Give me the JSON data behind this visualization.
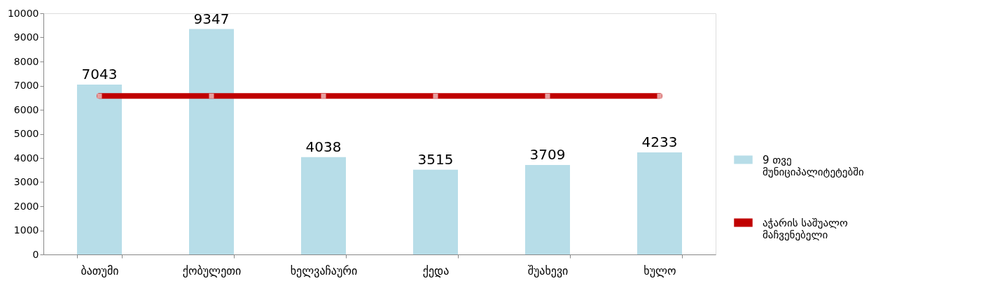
{
  "chart_data": {
    "type": "bar",
    "categories": [
      "ბათუმი",
      "ქობულეთი",
      "ხელვაჩაური",
      "ქედა",
      "შუახევი",
      "ხულო"
    ],
    "series": [
      {
        "name": "9 თვე მუნიციპალიტეტებში",
        "color": "#b7dde8",
        "values": [
          7043,
          9347,
          4038,
          3515,
          3709,
          4233
        ],
        "value_labels": [
          "7043",
          "9347",
          "4038",
          "3515",
          "3709",
          "4233"
        ]
      },
      {
        "name": "აჭარის საშუალო მაჩვენებელი",
        "type": "line",
        "color": "#c00000",
        "values": [
          6570,
          6570,
          6570,
          6570,
          6570,
          6570
        ]
      }
    ],
    "ylim": [
      0,
      10000
    ],
    "yticks": [
      0,
      1000,
      2000,
      3000,
      4000,
      5000,
      6000,
      7000,
      8000,
      9000,
      10000
    ],
    "grid": false,
    "legend": "right",
    "marker": "square",
    "line_style": "solid"
  }
}
